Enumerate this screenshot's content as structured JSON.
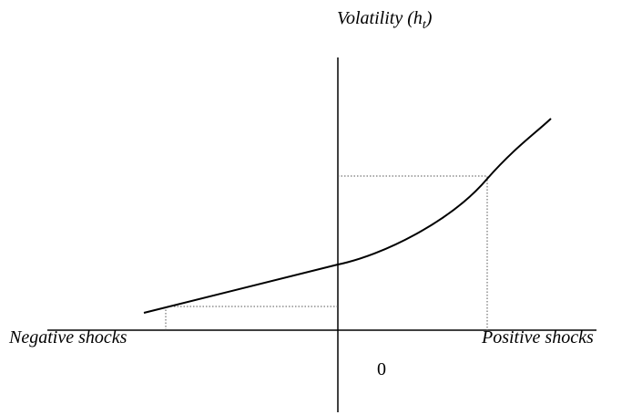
{
  "axis_labels": {
    "vertical": {
      "text": "Volatility (h",
      "subscript": "t",
      "closing": ")"
    },
    "left": "Negative shocks",
    "origin": "0",
    "right": "Positive shocks"
  }
}
